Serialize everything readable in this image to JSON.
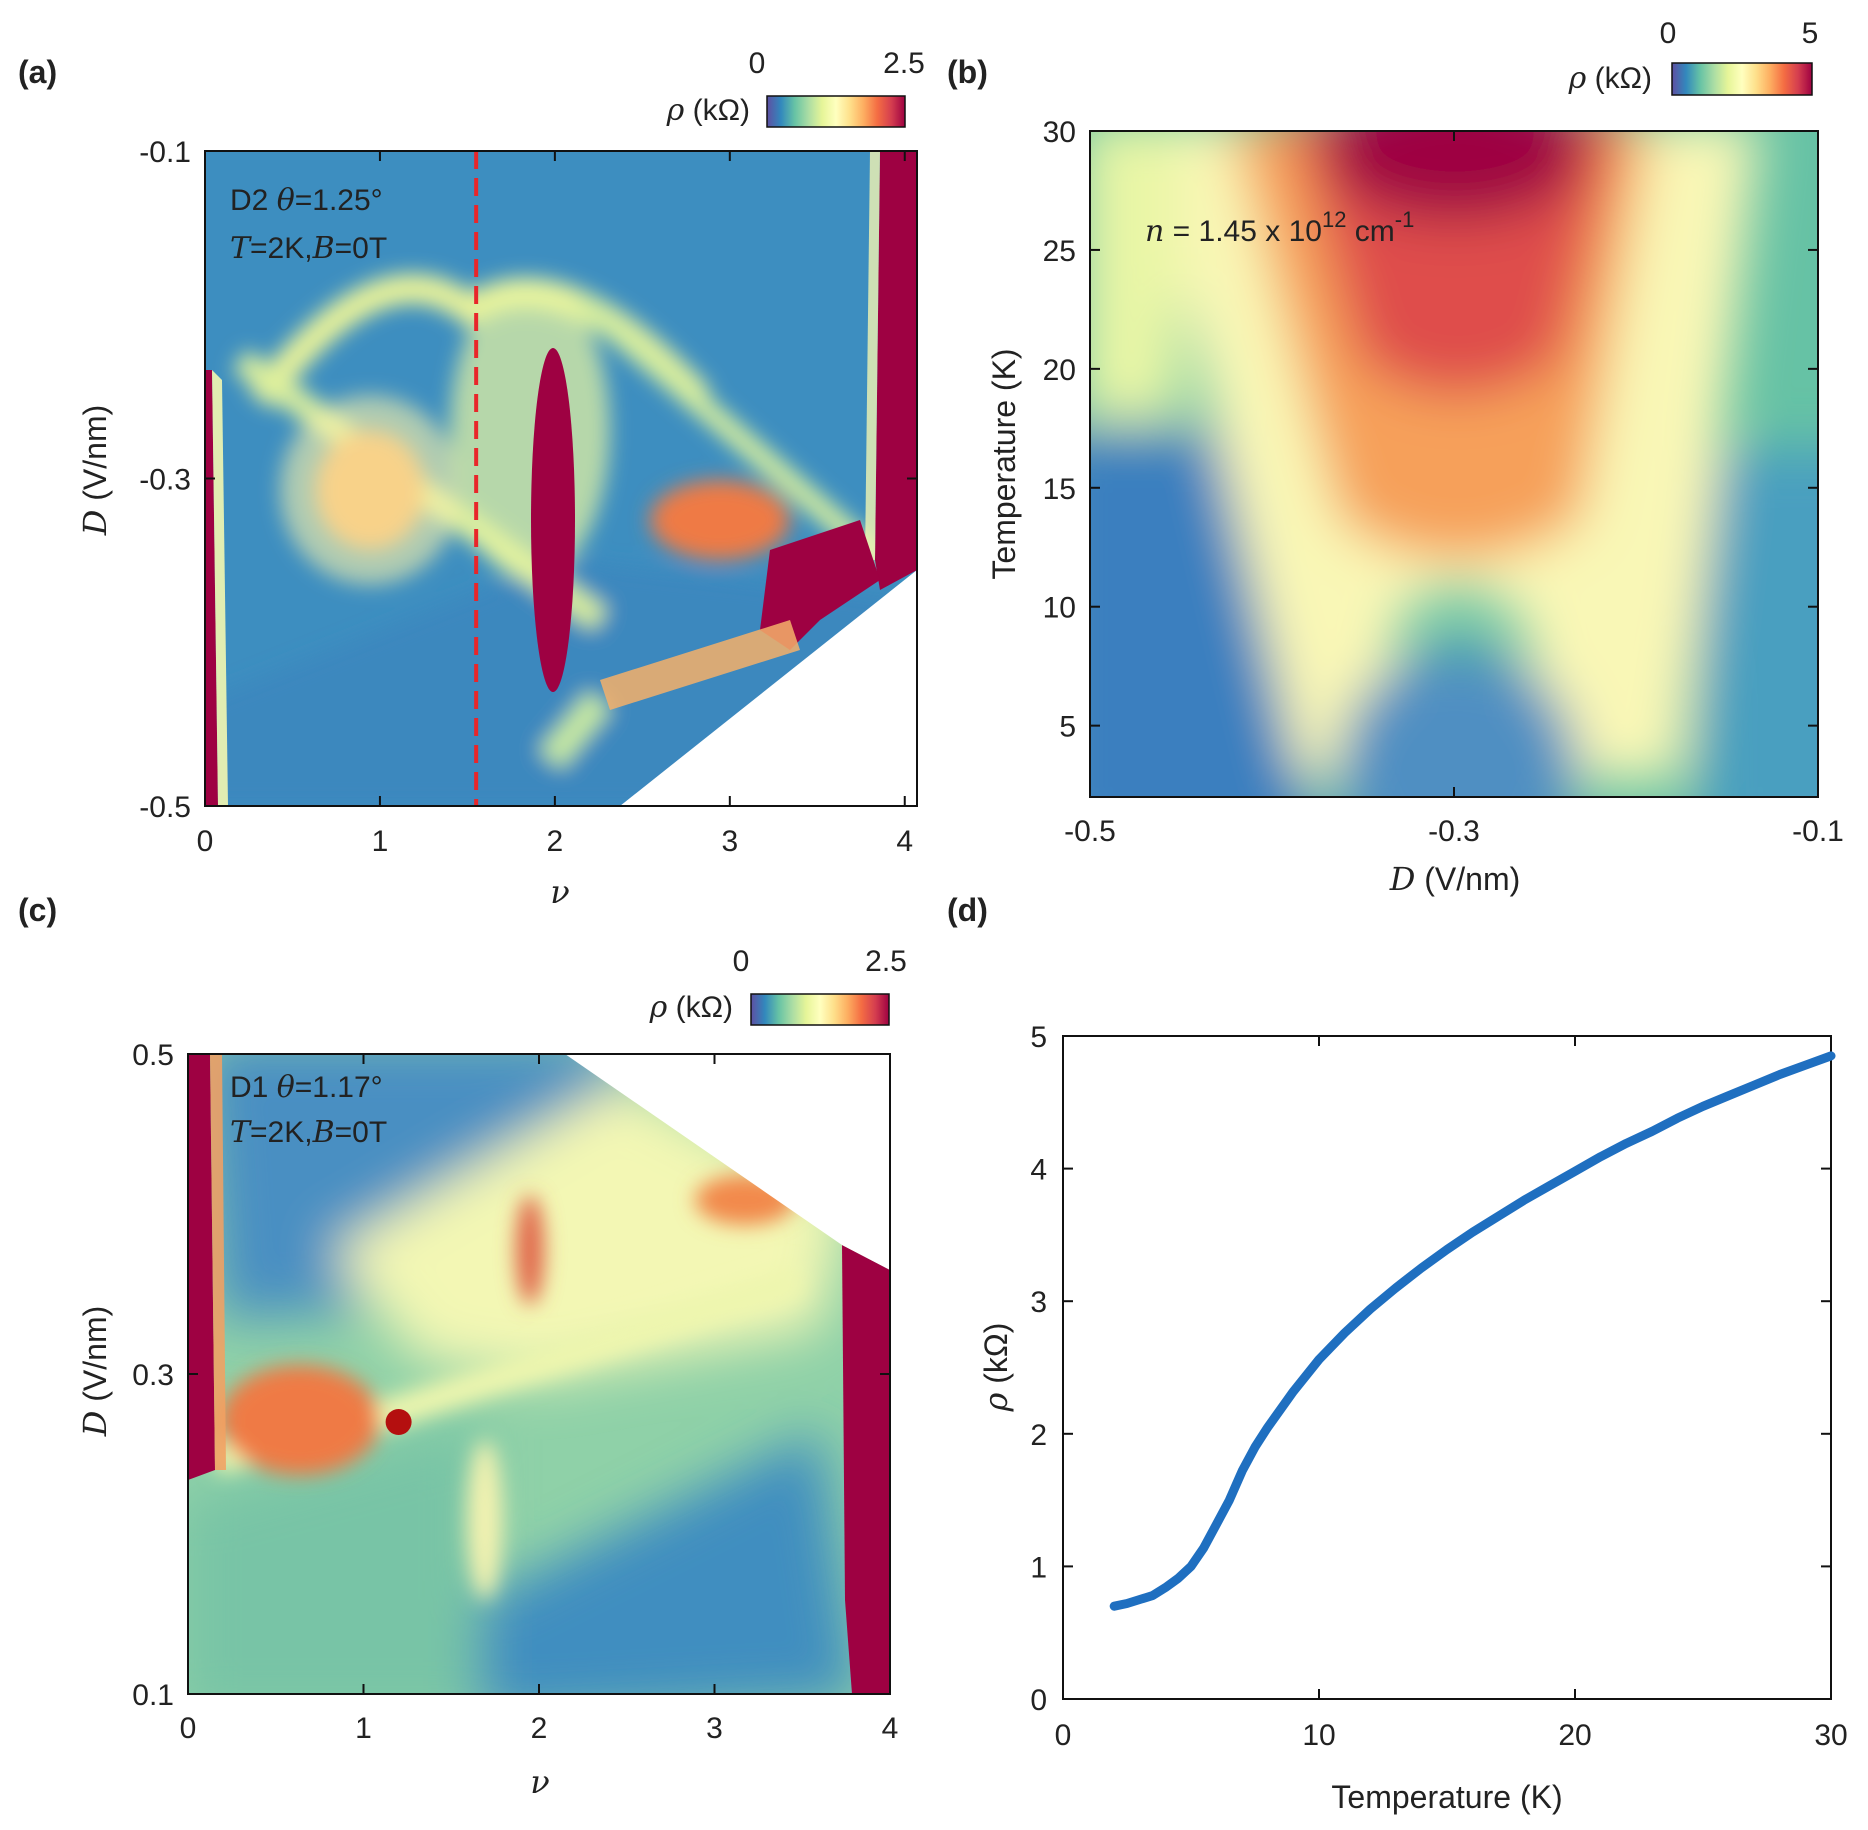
{
  "colors": {
    "colormap": [
      "#5e4fa2",
      "#3288bd",
      "#66c2a5",
      "#abdda4",
      "#e6f598",
      "#ffffbf",
      "#fee08b",
      "#fdae61",
      "#f46d43",
      "#d53e4f",
      "#9e0142"
    ],
    "line": "#1f6fc0",
    "cut_line": "#e8262a",
    "marker": "#b40f0f",
    "frame": "#111111"
  },
  "chart_data": [
    {
      "panel": "(a)",
      "type": "heatmap",
      "device": "D2",
      "theta_label": "θ",
      "theta_value": "=1.25°",
      "conditions": {
        "T_label": "T",
        "T_value": "=2K,",
        "B_label": "B",
        "B_value": "=0T"
      },
      "xlabel": "ν",
      "ylabel_sym": "D",
      "ylabel_unit": " (V/nm)",
      "xlim": [
        0,
        4.07
      ],
      "ylim": [
        -0.5,
        -0.1
      ],
      "xticks": [
        "0",
        "1",
        "2",
        "3",
        "4"
      ],
      "yticks": [
        "-0.1",
        "-0.3",
        "-0.5"
      ],
      "colorbar": {
        "symbol": "ρ",
        "unit": " (kΩ)",
        "min": "0",
        "max": "2.5"
      },
      "dashed_cut_nu": 1.55,
      "features": [
        {
          "name": "insulating stripe near ν=2",
          "nu": 2.0,
          "D_range": [
            -0.45,
            -0.22
          ],
          "rho_kohm": "> 2.5"
        },
        {
          "name": "resistive band at ν=0",
          "nu": 0.05,
          "D_range": [
            -0.5,
            -0.23
          ],
          "rho_kohm": "> 2.5"
        },
        {
          "name": "resistive band at ν=4",
          "nu": 3.9,
          "D_range": [
            -0.35,
            -0.1
          ],
          "rho_kohm": "> 2.5"
        },
        {
          "name": "resistive pocket near ν=1",
          "nu": 0.9,
          "D": -0.31,
          "rho_kohm": 1.8
        },
        {
          "name": "resistive pocket near ν=3",
          "nu": 3.15,
          "D": -0.34,
          "rho_kohm": 2.0
        }
      ]
    },
    {
      "panel": "(b)",
      "type": "heatmap",
      "annotation": {
        "n_label": "n",
        "mantissa": " = 1.45 x 10",
        "exponent": "12",
        "unit": " cm",
        "unit_exp": "-1"
      },
      "xlabel_sym": "D",
      "xlabel_unit": " (V/nm)",
      "ylabel": "Temperature (K)",
      "xlim": [
        -0.5,
        -0.1
      ],
      "ylim": [
        2,
        30
      ],
      "xticks": [
        "-0.5",
        "-0.3",
        "-0.1"
      ],
      "yticks": [
        "30",
        "25",
        "20",
        "15",
        "10",
        "5"
      ],
      "colorbar": {
        "symbol": "ρ",
        "unit": " (kΩ)",
        "min": "0",
        "max": "5"
      },
      "features": [
        {
          "name": "high-resistance dome",
          "D": -0.3,
          "T_range": [
            15,
            30
          ],
          "rho_kohm": 5
        },
        {
          "name": "low-T insulating minimum",
          "D": -0.3,
          "T": 3,
          "rho_kohm": 0.8
        }
      ]
    },
    {
      "panel": "(c)",
      "type": "heatmap",
      "device": "D1",
      "theta_label": "θ",
      "theta_value": "=1.17°",
      "conditions": {
        "T_label": "T",
        "T_value": "=2K,",
        "B_label": "B",
        "B_value": "=0T"
      },
      "xlabel": "ν",
      "ylabel_sym": "D",
      "ylabel_unit": " (V/nm)",
      "xlim": [
        0,
        4
      ],
      "ylim": [
        0.1,
        0.5
      ],
      "xticks": [
        "0",
        "1",
        "2",
        "3",
        "4"
      ],
      "yticks": [
        "0.5",
        "0.3",
        "0.1"
      ],
      "colorbar": {
        "symbol": "ρ",
        "unit": " (kΩ)",
        "min": "0",
        "max": "2.5"
      },
      "marker": {
        "nu": 1.2,
        "D": 0.27
      },
      "features": [
        {
          "name": "resistive pocket near ν=1",
          "nu": 0.6,
          "D": 0.28,
          "rho_kohm": 2.0
        },
        {
          "name": "resistive spot near ν=2",
          "nu": 1.95,
          "D": 0.37,
          "rho_kohm": 2.0
        },
        {
          "name": "resistive band at ν=0",
          "nu": 0.08,
          "D_range": [
            0.24,
            0.5
          ],
          "rho_kohm": "> 2.5"
        },
        {
          "name": "resistive band at ν=4",
          "nu": 3.85,
          "D_range": [
            0.1,
            0.36
          ],
          "rho_kohm": "> 2.5"
        }
      ]
    },
    {
      "panel": "(d)",
      "type": "line",
      "xlabel": "Temperature (K)",
      "ylabel_sym": "ρ",
      "ylabel_unit": " (kΩ)",
      "xlim": [
        0,
        30
      ],
      "ylim": [
        0,
        5
      ],
      "xticks": [
        "0",
        "10",
        "20",
        "30"
      ],
      "yticks": [
        "0",
        "1",
        "2",
        "3",
        "4",
        "5"
      ],
      "series": [
        {
          "name": "ρ(T)",
          "x": [
            2.0,
            2.5,
            3.0,
            3.5,
            4.0,
            4.5,
            5.0,
            5.5,
            6.0,
            6.5,
            7.0,
            7.5,
            8.0,
            9.0,
            10.0,
            11.0,
            12.0,
            13.0,
            14.0,
            15.0,
            16.0,
            17.0,
            18.0,
            19.0,
            20.0,
            21.0,
            22.0,
            23.0,
            24.0,
            25.0,
            26.0,
            27.0,
            28.0,
            29.0,
            30.0
          ],
          "y": [
            0.7,
            0.72,
            0.75,
            0.78,
            0.84,
            0.91,
            1.0,
            1.14,
            1.32,
            1.5,
            1.72,
            1.9,
            2.05,
            2.32,
            2.56,
            2.76,
            2.94,
            3.1,
            3.25,
            3.39,
            3.52,
            3.64,
            3.76,
            3.87,
            3.98,
            4.09,
            4.19,
            4.28,
            4.38,
            4.47,
            4.55,
            4.63,
            4.71,
            4.78,
            4.85
          ]
        }
      ]
    }
  ]
}
